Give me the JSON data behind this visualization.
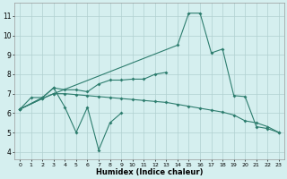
{
  "xlabel": "Humidex (Indice chaleur)",
  "line_color": "#2d7d6e",
  "bg_color": "#d5efef",
  "grid_color": "#b0d0d0",
  "xlim": [
    -0.5,
    23.5
  ],
  "ylim": [
    3.6,
    11.7
  ],
  "yticks": [
    4,
    5,
    6,
    7,
    8,
    9,
    10,
    11
  ],
  "xticks": [
    0,
    1,
    2,
    3,
    4,
    5,
    6,
    7,
    8,
    9,
    10,
    11,
    12,
    13,
    14,
    15,
    16,
    17,
    18,
    19,
    20,
    21,
    22,
    23
  ],
  "s1_x": [
    0,
    1,
    2,
    3,
    4,
    5,
    6,
    7,
    8,
    9
  ],
  "s1_y": [
    6.2,
    6.8,
    6.8,
    7.3,
    6.3,
    5.0,
    6.3,
    4.1,
    5.5,
    6.0
  ],
  "s2_x": [
    0,
    2,
    3,
    4,
    5,
    6,
    7,
    8,
    9,
    10,
    11,
    12,
    13
  ],
  "s2_y": [
    6.2,
    6.8,
    7.3,
    7.2,
    7.2,
    7.1,
    7.5,
    7.7,
    7.7,
    7.75,
    7.75,
    8.0,
    8.1
  ],
  "s3_x": [
    0,
    2,
    3,
    4,
    5,
    6,
    7,
    8,
    9,
    10,
    11,
    12,
    13,
    14,
    15,
    16,
    17,
    18,
    19,
    20,
    21,
    22,
    23
  ],
  "s3_y": [
    6.2,
    6.75,
    7.0,
    7.0,
    6.95,
    6.9,
    6.85,
    6.8,
    6.75,
    6.7,
    6.65,
    6.6,
    6.55,
    6.45,
    6.35,
    6.25,
    6.15,
    6.05,
    5.9,
    5.6,
    5.5,
    5.3,
    5.0
  ],
  "s4_x": [
    0,
    2,
    3,
    14,
    15,
    16,
    17,
    18,
    19,
    20,
    21,
    22,
    23
  ],
  "s4_y": [
    6.2,
    6.75,
    7.0,
    9.5,
    11.15,
    11.15,
    9.1,
    9.3,
    6.9,
    6.85,
    5.3,
    5.2,
    5.0
  ]
}
